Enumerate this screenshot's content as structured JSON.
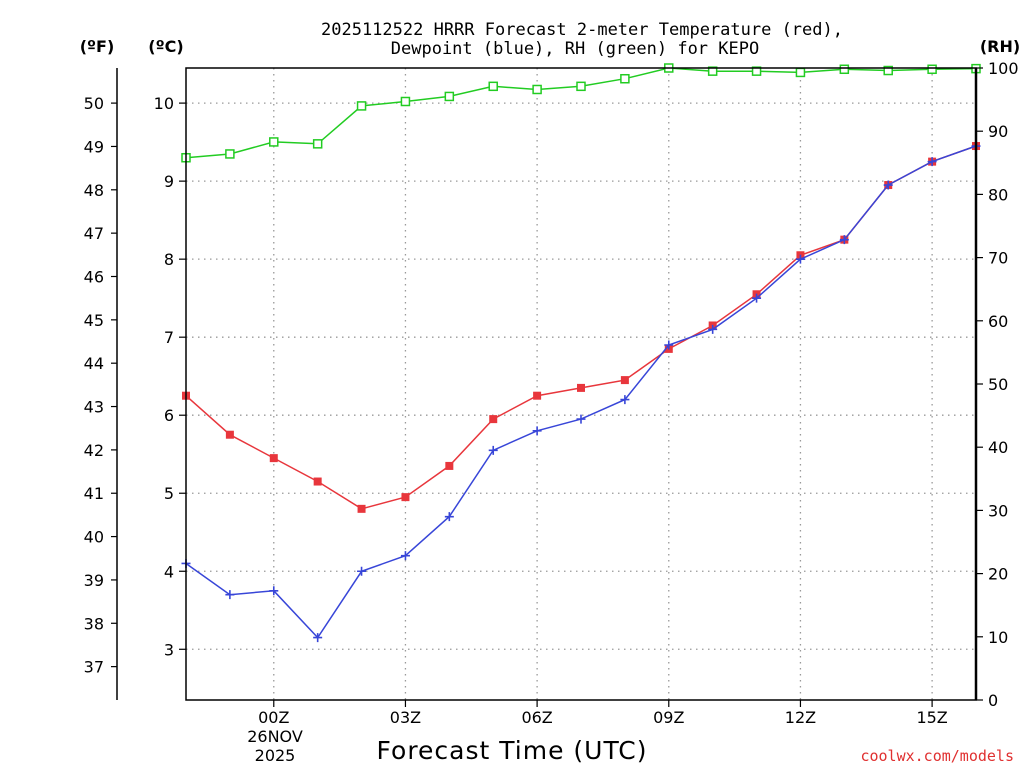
{
  "chart_data": {
    "type": "line",
    "title_line1": "2025112522 HRRR Forecast 2-meter Temperature (red),",
    "title_line2": "Dewpoint (blue), RH (green) for KEPO",
    "unit_left_f": "(ºF)",
    "unit_left_c": "(ºC)",
    "unit_right": "(RH)",
    "xlabel": "Forecast Time (UTC)",
    "credit": "coolwx.com/models",
    "date_line1": "26NOV",
    "date_line2": "2025",
    "colors": {
      "temperature": "#e8363c",
      "dewpoint": "#3846d8",
      "rh": "#22cc22",
      "grid": "#999999",
      "credit": "#e03030"
    },
    "x_hours": [
      -2,
      -1,
      0,
      1,
      2,
      3,
      4,
      5,
      6,
      7,
      8,
      9,
      10,
      11,
      12,
      13,
      14,
      15,
      16
    ],
    "x_ticks": [
      {
        "hour": 0,
        "label": "00Z"
      },
      {
        "hour": 3,
        "label": "03Z"
      },
      {
        "hour": 6,
        "label": "06Z"
      },
      {
        "hour": 9,
        "label": "09Z"
      },
      {
        "hour": 12,
        "label": "12Z"
      },
      {
        "hour": 15,
        "label": "15Z"
      }
    ],
    "xlim": [
      -2,
      16
    ],
    "y_celsius": {
      "lim": [
        2.35,
        10.45
      ],
      "ticks": [
        "3",
        "4",
        "5",
        "6",
        "7",
        "8",
        "9",
        "10"
      ]
    },
    "y_fahrenheit": {
      "ticks": [
        "37",
        "38",
        "39",
        "40",
        "41",
        "42",
        "43",
        "44",
        "45",
        "46",
        "47",
        "48",
        "49",
        "50"
      ]
    },
    "y_rh": {
      "lim": [
        0,
        100
      ],
      "ticks": [
        "0",
        "10",
        "20",
        "30",
        "40",
        "50",
        "60",
        "70",
        "80",
        "90",
        "100"
      ]
    },
    "series": [
      {
        "name": "Temperature",
        "marker": "filled-square",
        "values": [
          6.25,
          5.75,
          5.45,
          5.15,
          4.8,
          4.95,
          5.35,
          5.95,
          6.25,
          6.35,
          6.45,
          6.85,
          7.15,
          7.55,
          8.05,
          8.25,
          8.95,
          9.25,
          9.45
        ]
      },
      {
        "name": "Dewpoint",
        "marker": "plus",
        "values": [
          4.1,
          3.7,
          3.75,
          3.15,
          4.0,
          4.2,
          4.7,
          5.55,
          5.8,
          5.95,
          6.2,
          6.9,
          7.1,
          7.5,
          8.0,
          8.25,
          8.95,
          9.25,
          9.45
        ]
      },
      {
        "name": "RH",
        "marker": "open-square",
        "values": [
          85.8,
          86.4,
          88.3,
          88.0,
          94.0,
          94.7,
          95.5,
          97.1,
          96.6,
          97.1,
          98.3,
          100,
          99.5,
          99.5,
          99.3,
          99.8,
          99.6,
          99.8,
          99.9
        ]
      }
    ]
  }
}
